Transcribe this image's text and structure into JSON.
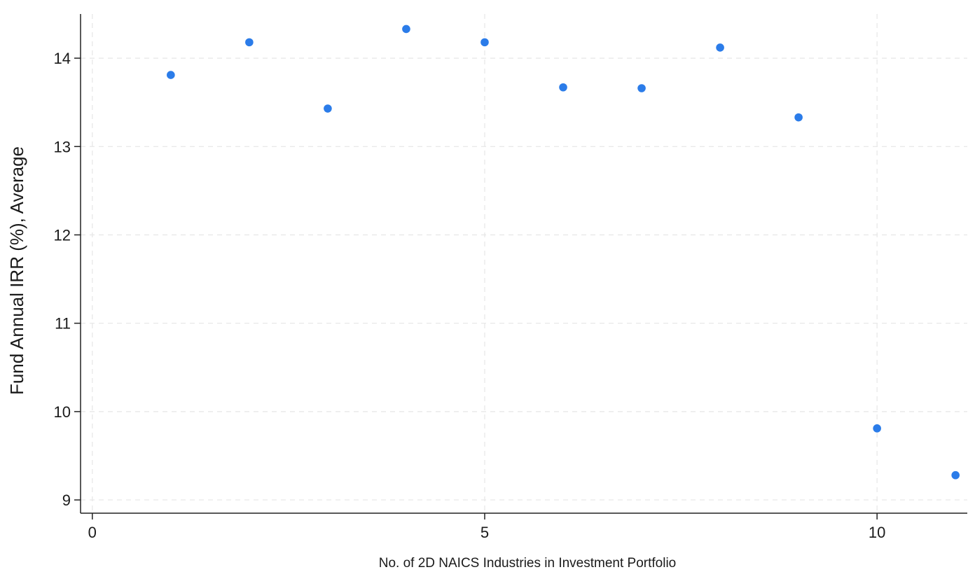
{
  "chart_data": {
    "type": "scatter",
    "title": "",
    "xlabel": "No. of 2D NAICS Industries in Investment Portfolio",
    "ylabel": "Fund Annual IRR (%), Average",
    "xlim": [
      -0.15,
      11.15
    ],
    "ylim": [
      8.85,
      14.5
    ],
    "xticks": [
      0,
      5,
      10
    ],
    "yticks": [
      9,
      10,
      11,
      12,
      13,
      14
    ],
    "grid": true,
    "legend": "none",
    "marker_color": "#2b7ce9",
    "points": [
      {
        "x": 1,
        "y": 13.81
      },
      {
        "x": 2,
        "y": 14.18
      },
      {
        "x": 3,
        "y": 13.43
      },
      {
        "x": 4,
        "y": 14.33
      },
      {
        "x": 5,
        "y": 14.18
      },
      {
        "x": 6,
        "y": 13.67
      },
      {
        "x": 7,
        "y": 13.66
      },
      {
        "x": 8,
        "y": 14.12
      },
      {
        "x": 9,
        "y": 13.33
      },
      {
        "x": 10,
        "y": 9.81
      },
      {
        "x": 11,
        "y": 9.28
      }
    ]
  }
}
